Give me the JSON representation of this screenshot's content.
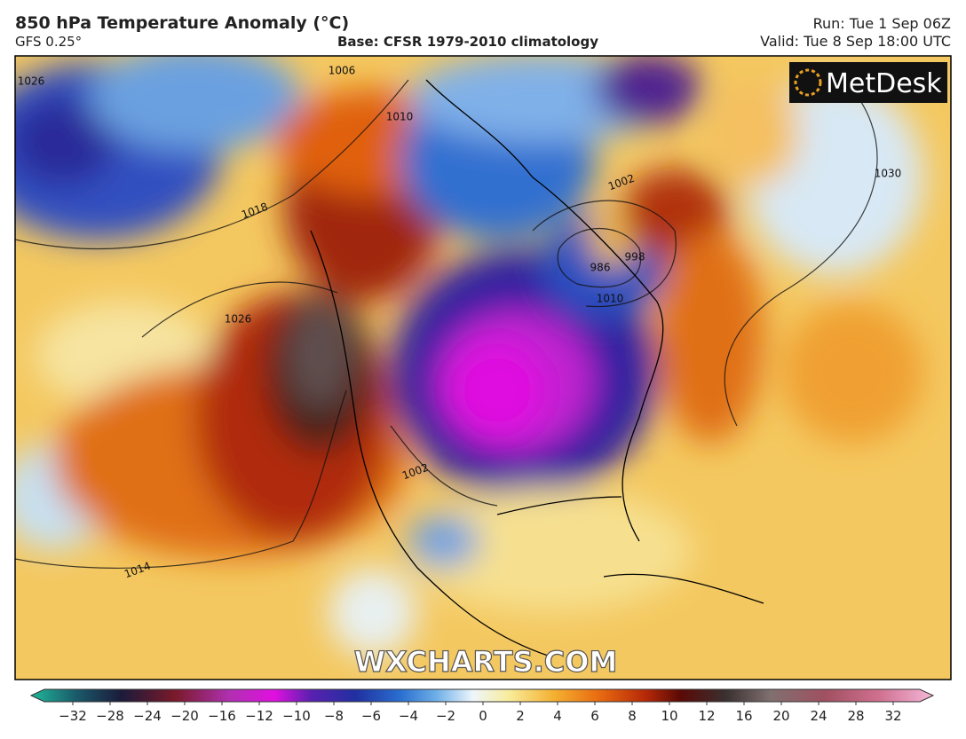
{
  "header": {
    "title": "850 hPa Temperature Anomaly (°C)",
    "model": "GFS 0.25°",
    "base": "Base: CFSR 1979-2010 climatology",
    "run": "Run: Tue 1 Sep 06Z",
    "valid": "Valid: Tue 8 Sep 18:00 UTC"
  },
  "logo": "MetDesk",
  "watermark": "WXCHARTS.COM",
  "isobar_labels": [
    "1026",
    "1018",
    "1006",
    "1010",
    "1002",
    "986",
    "998",
    "1014",
    "1030",
    "1026",
    "1002",
    "1010"
  ],
  "colorbar": {
    "ticks": [
      {
        "value": -32,
        "label": "−32"
      },
      {
        "value": -28,
        "label": "−28"
      },
      {
        "value": -24,
        "label": "−24"
      },
      {
        "value": -20,
        "label": "−20"
      },
      {
        "value": -16,
        "label": "−16"
      },
      {
        "value": -12,
        "label": "−12"
      },
      {
        "value": -10,
        "label": "−10"
      },
      {
        "value": -8,
        "label": "−8"
      },
      {
        "value": -6,
        "label": "−6"
      },
      {
        "value": -4,
        "label": "−4"
      },
      {
        "value": -2,
        "label": "−2"
      },
      0,
      2,
      4,
      6,
      8,
      10,
      12,
      16,
      20,
      24,
      28,
      32
    ]
  }
}
